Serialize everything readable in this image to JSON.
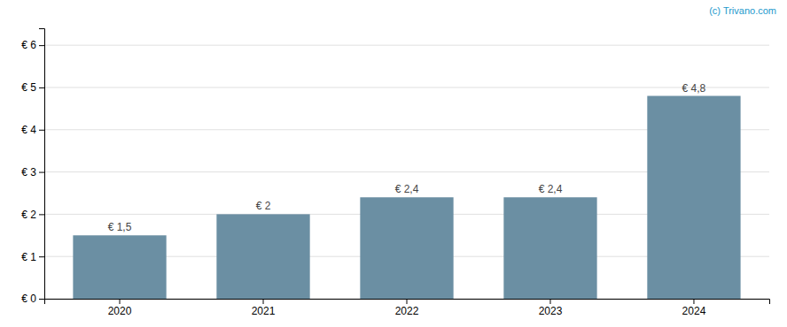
{
  "chart_data": {
    "type": "bar",
    "categories": [
      "2020",
      "2021",
      "2022",
      "2023",
      "2024"
    ],
    "values": [
      1.5,
      2.0,
      2.4,
      2.4,
      4.8
    ],
    "value_labels": [
      "€ 1,5",
      "€ 2",
      "€ 2,4",
      "€ 2,4",
      "€ 4,8"
    ],
    "data_labels": true,
    "color": "#6b8fa3",
    "ylim": [
      0,
      6.4
    ],
    "yticks": [
      {
        "value": 0,
        "label": "€ 0"
      },
      {
        "value": 1,
        "label": "€ 1"
      },
      {
        "value": 2,
        "label": "€ 2"
      },
      {
        "value": 3,
        "label": "€ 3"
      },
      {
        "value": 4,
        "label": "€ 4"
      },
      {
        "value": 5,
        "label": "€ 5"
      },
      {
        "value": 6,
        "label": "€ 6"
      }
    ],
    "grid": true,
    "annotation": "(c) Trivano.com"
  }
}
